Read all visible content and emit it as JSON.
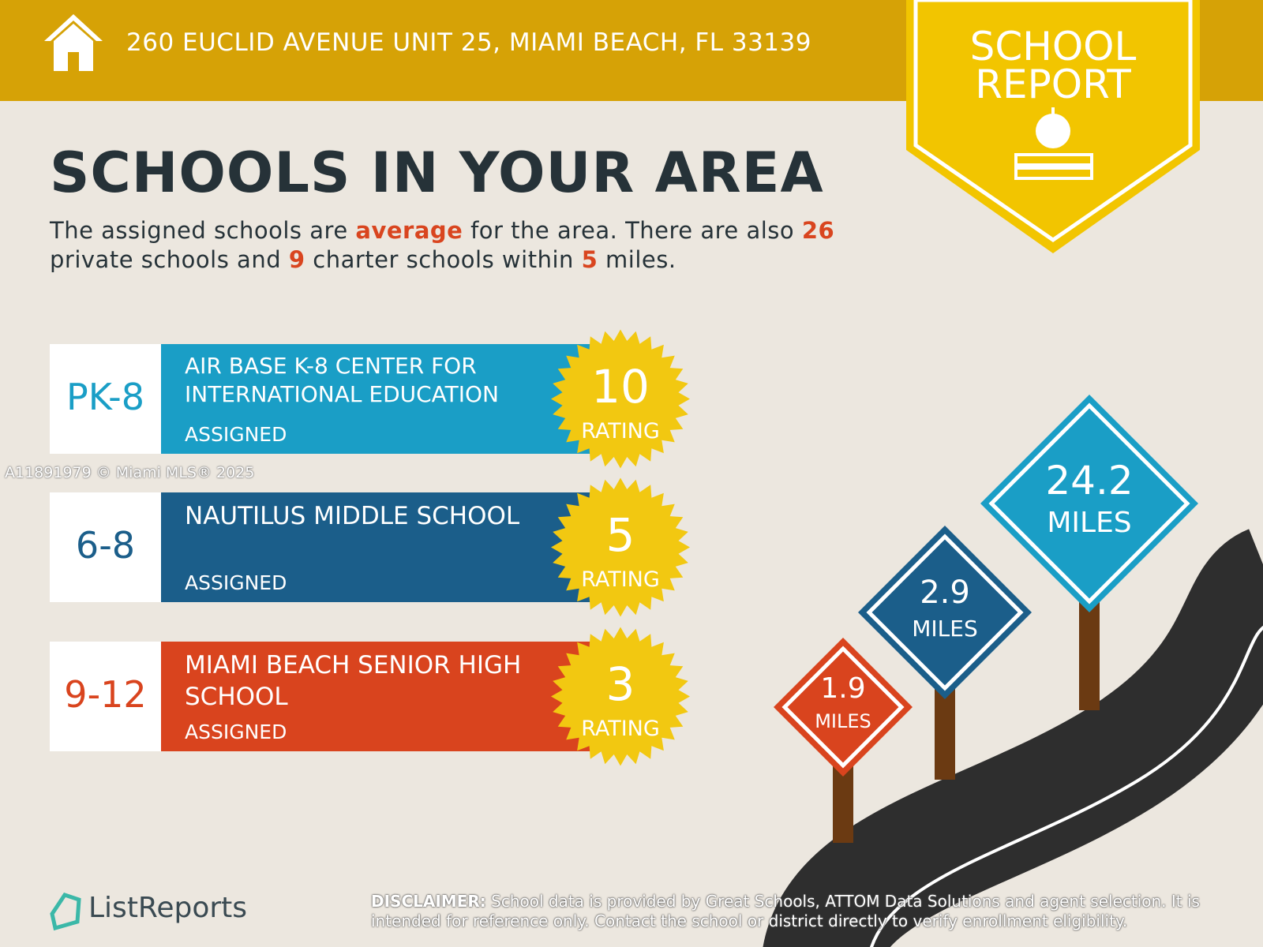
{
  "header": {
    "address": "260 EUCLID AVENUE UNIT 25, MIAMI BEACH, FL 33139"
  },
  "badge": {
    "line_1": "SCHOOL",
    "line_2": "REPORT"
  },
  "heading": "SCHOOLS IN YOUR AREA",
  "intro": {
    "text_1": "The assigned schools are",
    "highlight_1": "average",
    "text_2": "for the area. There are also",
    "highlight_2": "26",
    "text_3": "private schools and",
    "highlight_3": "9",
    "text_4": "charter schools within",
    "highlight_4": "5",
    "text_5": "miles."
  },
  "schools": [
    {
      "grades": "PK-8",
      "name": "AIR BASE K-8 CENTER FOR INTERNATIONAL EDUCATION",
      "status": "ASSIGNED",
      "rating": "10",
      "rating_label": "RATING"
    },
    {
      "grades": "6-8",
      "name": "NAUTILUS MIDDLE SCHOOL",
      "status": "ASSIGNED",
      "rating": "5",
      "rating_label": "RATING"
    },
    {
      "grades": "9-12",
      "name": "MIAMI BEACH SENIOR HIGH SCHOOL",
      "status": "ASSIGNED",
      "rating": "3",
      "rating_label": "RATING"
    }
  ],
  "signs": [
    {
      "distance": "24.2",
      "unit": "MILES"
    },
    {
      "distance": "2.9",
      "unit": "MILES"
    },
    {
      "distance": "1.9",
      "unit": "MILES"
    }
  ],
  "watermark": "A11891979 © Miami MLS® 2025",
  "logo": "ListReports",
  "disclaimer": {
    "label": "DISCLAIMER:",
    "text": "School data is provided by Great Schools, ATTOM Data Solutions and agent selection. It is intended for reference only. Contact the school or district directly to verify enrollment eligibility."
  }
}
